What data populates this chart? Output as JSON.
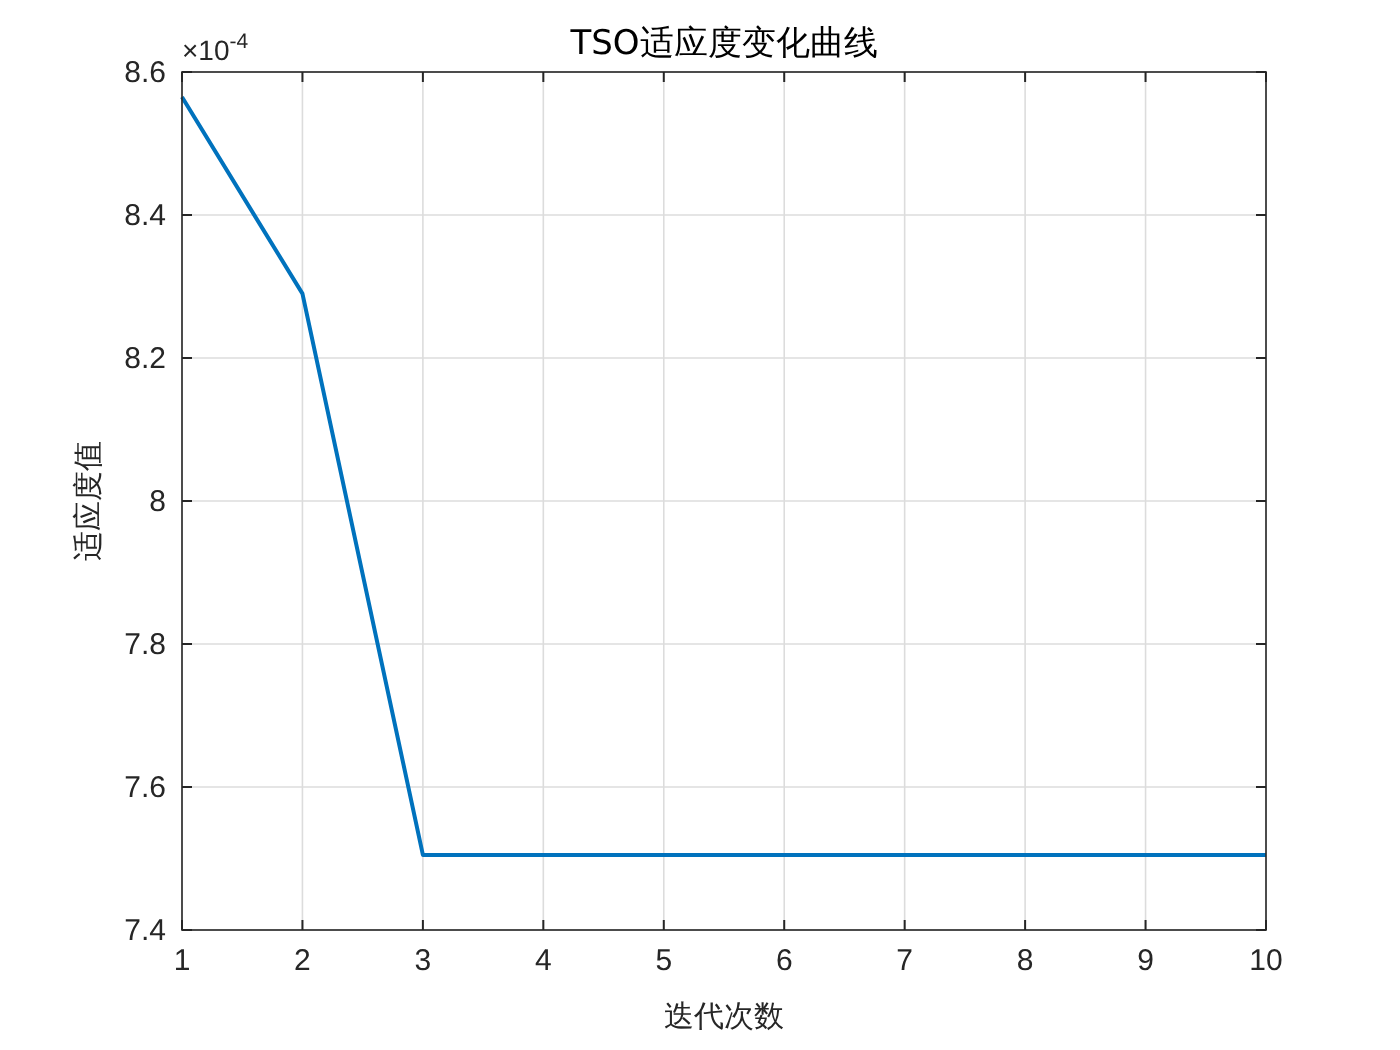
{
  "chart_data": {
    "type": "line",
    "title": "TSO适应度变化曲线",
    "xlabel": "迭代次数",
    "ylabel": "适应度值",
    "annotations": [
      "×10$^{-4}$"
    ],
    "x": [
      1,
      2,
      3,
      4,
      5,
      6,
      7,
      8,
      9,
      10
    ],
    "series": [
      {
        "color": "#0072bd",
        "values": [
          8.565,
          8.29,
          7.505,
          7.505,
          7.505,
          7.505,
          7.505,
          7.505,
          7.505,
          7.505
        ]
      }
    ],
    "xlim": [
      1,
      10
    ],
    "xticks": [
      1,
      2,
      3,
      4,
      5,
      6,
      7,
      8,
      9,
      10
    ],
    "ylim": [
      7.4,
      8.6
    ],
    "yticks": [
      7.4,
      7.6,
      7.8,
      8,
      8.2,
      8.4,
      8.6
    ],
    "grid": true,
    "marker": "none",
    "line_style": "solid"
  }
}
